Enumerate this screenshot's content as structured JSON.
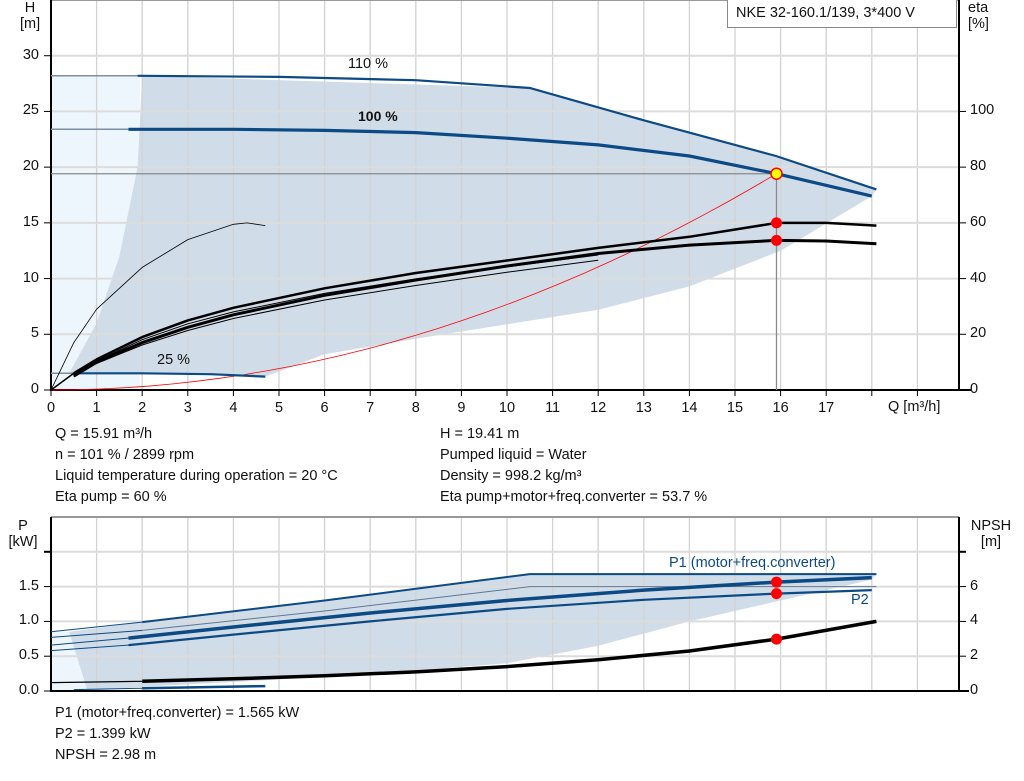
{
  "title": "NKE 32-160.1/139, 3*400 V",
  "colors": {
    "curve_blue": "#0b4a85",
    "area": "#d0dce8",
    "area_light": "#eef6fd",
    "system_curve": "#ff0000",
    "duty_point": "#ffff00",
    "marker": "#ff0000"
  },
  "info_top": {
    "left": [
      "Q = 15.91 m³/h",
      "n = 101 % / 2899 rpm",
      "Liquid temperature during operation = 20 °C",
      "Eta pump = 60 %"
    ],
    "right": [
      "H = 19.41 m",
      "Pumped liquid = Water",
      "Density = 998.2 kg/m³",
      "Eta pump+motor+freq.converter = 53.7 %"
    ]
  },
  "info_bottom": [
    "P1 (motor+freq.converter) = 1.565 kW",
    "P2 = 1.399 kW",
    "NPSH = 2.98 m"
  ],
  "chart_data": [
    {
      "type": "line",
      "xlabel": "Q [m³/h]",
      "ylabel_left": [
        "H",
        "[m]"
      ],
      "ylabel_right": [
        "eta",
        "[%]"
      ],
      "xlim": [
        0,
        20
      ],
      "ylim_left": [
        0,
        35
      ],
      "ylim_right": [
        0,
        140
      ],
      "x_ticks": [
        "0",
        "1",
        "2",
        "3",
        "4",
        "5",
        "6",
        "7",
        "8",
        "9",
        "10",
        "11",
        "12",
        "13",
        "14",
        "15",
        "16",
        "17"
      ],
      "y_left_ticks": [
        "0",
        "5",
        "10",
        "15",
        "20",
        "25",
        "30"
      ],
      "y_right_ticks": [
        "0",
        "20",
        "40",
        "60",
        "80",
        "100"
      ],
      "grid": true,
      "curve_labels": [
        {
          "text": "110 %"
        },
        {
          "text": "100 %"
        },
        {
          "text": "25 %"
        }
      ],
      "series_head": [
        {
          "id": "h110",
          "x": [
            0,
            1.9,
            2,
            5,
            8,
            10.5,
            13,
            15.9,
            18.1
          ],
          "y": [
            28.2,
            28.2,
            28.2,
            28.1,
            27.8,
            27.1,
            24.2,
            21.0,
            18.0
          ]
        },
        {
          "id": "h100",
          "x": [
            0,
            1.7,
            4,
            6,
            8,
            10,
            12,
            14,
            15.91,
            18
          ],
          "y": [
            23.4,
            23.4,
            23.4,
            23.3,
            23.1,
            22.6,
            22.0,
            21.0,
            19.41,
            17.4
          ]
        },
        {
          "id": "h25",
          "x": [
            0,
            0.5,
            2,
            3.5,
            4.7
          ],
          "y": [
            1.5,
            1.5,
            1.5,
            1.42,
            1.2
          ]
        }
      ],
      "series_eta": [
        {
          "id": "eta_pump",
          "x": [
            0.5,
            1,
            2,
            3,
            4,
            6,
            8,
            10,
            12,
            14,
            15.91,
            17,
            18.1
          ],
          "y": [
            6,
            11,
            19,
            25,
            29.5,
            36.5,
            42,
            46.5,
            51,
            55,
            60,
            60,
            59
          ]
        },
        {
          "id": "eta_total",
          "x": [
            0.5,
            1,
            2,
            3,
            4,
            6,
            8,
            10,
            12,
            14,
            15.91,
            17,
            18.1
          ],
          "y": [
            5,
            10,
            17,
            22.5,
            27,
            34,
            39.5,
            44.5,
            49,
            52,
            53.7,
            53.5,
            52.5
          ]
        },
        {
          "id": "eta_pump_25",
          "x": [
            0,
            0.5,
            1,
            2,
            3,
            4,
            4.3,
            4.7
          ],
          "y": [
            0,
            17,
            29,
            44,
            54,
            59.5,
            60,
            59
          ]
        }
      ],
      "system_curve": {
        "x_end": 15.91,
        "y_end": 19.41
      },
      "duty_point": {
        "q": 15.91,
        "h": 19.41,
        "eta_pump": 60,
        "eta_total": 53.7
      },
      "operating_area": {
        "x": [
          0.4,
          1.0,
          1.5,
          1.9,
          2,
          10.5,
          13,
          15.9,
          18.1,
          18,
          16,
          14,
          12,
          10,
          8,
          6,
          4.7,
          2,
          0.5
        ],
        "y": [
          1.5,
          6,
          12,
          20,
          28.2,
          27.1,
          24.2,
          21.0,
          18.0,
          17.4,
          12.5,
          9.3,
          7.2,
          5.9,
          4.6,
          3.2,
          1.2,
          1.5,
          1.5
        ]
      }
    },
    {
      "type": "line",
      "xlim": [
        0,
        20
      ],
      "ylim_left": [
        0,
        2.5
      ],
      "ylim_right": [
        0,
        10
      ],
      "ylabel_left": [
        "P",
        "[kW]"
      ],
      "ylabel_right": [
        "NPSH",
        "[m]"
      ],
      "y_left_ticks": [
        "0.0",
        "0.5",
        "1.0",
        "1.5"
      ],
      "y_right_ticks": [
        "0",
        "2",
        "4",
        "6"
      ],
      "grid": true,
      "curve_labels": [
        {
          "text": "P1 (motor+freq.converter)"
        },
        {
          "text": "P2"
        }
      ],
      "series_power": [
        {
          "id": "p1_max",
          "x": [
            0,
            2,
            6,
            10.5,
            18.1
          ],
          "y": [
            0.85,
            0.99,
            1.3,
            1.68,
            1.68
          ]
        },
        {
          "id": "p2_max",
          "x": [
            0,
            2,
            6,
            10.5,
            18.1
          ],
          "y": [
            0.77,
            0.87,
            1.15,
            1.5,
            1.5
          ]
        },
        {
          "id": "p1",
          "x": [
            0,
            1.7,
            4,
            7,
            10,
            13,
            15.91,
            18
          ],
          "y": [
            0.66,
            0.76,
            0.92,
            1.12,
            1.3,
            1.45,
            1.565,
            1.63
          ]
        },
        {
          "id": "p2",
          "x": [
            0,
            1.7,
            4,
            7,
            10,
            13,
            15.91,
            18
          ],
          "y": [
            0.58,
            0.66,
            0.81,
            1.0,
            1.18,
            1.31,
            1.399,
            1.45
          ]
        },
        {
          "id": "p_25",
          "x": [
            0.5,
            2,
            4.7
          ],
          "y": [
            0.02,
            0.04,
            0.07
          ]
        }
      ],
      "series_npsh": [
        {
          "id": "npsh",
          "x": [
            0,
            2,
            4,
            6,
            8,
            10,
            12,
            14,
            15.91,
            18.1
          ],
          "y": [
            0.48,
            0.56,
            0.7,
            0.88,
            1.1,
            1.4,
            1.8,
            2.3,
            2.98,
            4.0
          ]
        }
      ],
      "duty_point": {
        "p1": 1.565,
        "p2": 1.399,
        "npsh": 2.98
      },
      "operating_area": {
        "x": [
          0.4,
          2,
          6,
          10.5,
          18.1,
          18,
          16,
          14,
          12,
          10,
          7,
          4,
          2,
          0.8
        ],
        "y": [
          0.85,
          0.99,
          1.3,
          1.68,
          1.68,
          1.6,
          1.3,
          1.0,
          0.65,
          0.4,
          0.24,
          0.13,
          0.06,
          0.0
        ]
      }
    }
  ]
}
